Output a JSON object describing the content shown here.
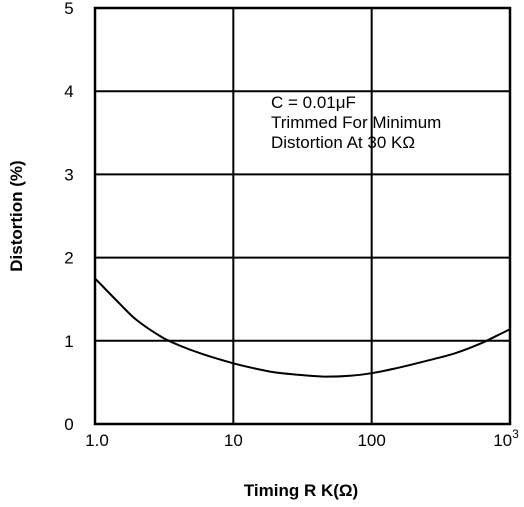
{
  "chart_data": {
    "type": "line",
    "xlabel": "Timing R K(Ω)",
    "ylabel": "Distortion (%)",
    "x_scale": "log",
    "xlim": [
      1,
      1000
    ],
    "ylim": [
      0,
      5
    ],
    "grid": true,
    "x_ticks": [
      {
        "value": 1,
        "label": "1.0"
      },
      {
        "value": 10,
        "label": "10"
      },
      {
        "value": 100,
        "label": "100"
      },
      {
        "value": 1000,
        "label": "10",
        "sup": "3"
      }
    ],
    "y_ticks": [
      {
        "value": 0,
        "label": "0"
      },
      {
        "value": 1,
        "label": "1"
      },
      {
        "value": 2,
        "label": "2"
      },
      {
        "value": 3,
        "label": "3"
      },
      {
        "value": 4,
        "label": "4"
      },
      {
        "value": 5,
        "label": "5"
      }
    ],
    "annotation": [
      "C = 0.01μF",
      "Trimmed For Minimum",
      "Distortion At 30 KΩ"
    ],
    "series": [
      {
        "color": "#000000",
        "points": [
          [
            1.0,
            1.75
          ],
          [
            1.5,
            1.45
          ],
          [
            2.0,
            1.25
          ],
          [
            3.0,
            1.05
          ],
          [
            4.0,
            0.95
          ],
          [
            6.0,
            0.84
          ],
          [
            10,
            0.73
          ],
          [
            15,
            0.66
          ],
          [
            20,
            0.62
          ],
          [
            30,
            0.59
          ],
          [
            45,
            0.57
          ],
          [
            70,
            0.58
          ],
          [
            100,
            0.61
          ],
          [
            150,
            0.67
          ],
          [
            250,
            0.76
          ],
          [
            400,
            0.85
          ],
          [
            600,
            0.96
          ],
          [
            800,
            1.06
          ],
          [
            1000,
            1.14
          ]
        ]
      }
    ]
  }
}
